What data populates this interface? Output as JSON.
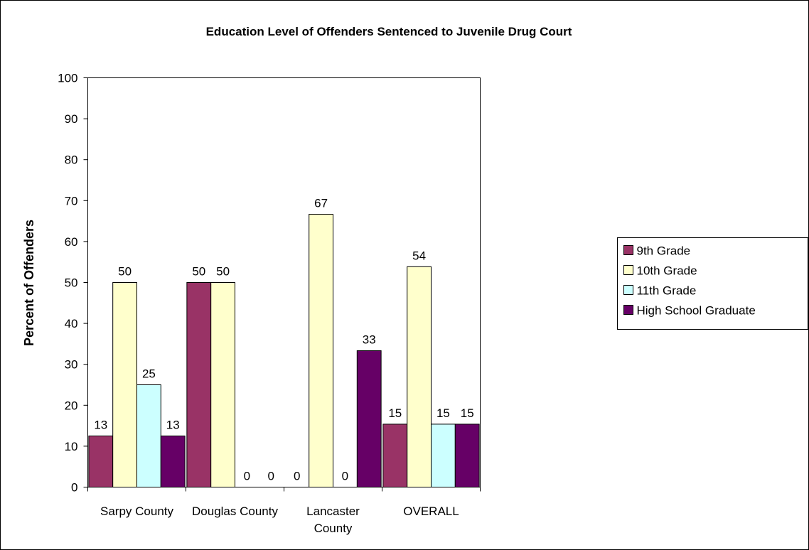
{
  "chart_data": {
    "type": "bar",
    "title": "Education Level of Offenders Sentenced to Juvenile Drug Court",
    "xlabel": "",
    "ylabel": "Percent of Offenders",
    "ylim": [
      0,
      100
    ],
    "yticks": [
      0,
      10,
      20,
      30,
      40,
      50,
      60,
      70,
      80,
      90,
      100
    ],
    "categories": [
      [
        "Sarpy County"
      ],
      [
        "Douglas County"
      ],
      [
        "Lancaster",
        "County"
      ],
      [
        "OVERALL"
      ]
    ],
    "series": [
      {
        "name": "9th Grade",
        "color": "#993366",
        "values": [
          12.5,
          50,
          0,
          15.38
        ],
        "labels": [
          "13",
          "50",
          "0",
          "15"
        ]
      },
      {
        "name": "10th Grade",
        "color": "#FFFFCC",
        "values": [
          50,
          50,
          66.67,
          53.85
        ],
        "labels": [
          "50",
          "50",
          "67",
          "54"
        ]
      },
      {
        "name": "11th Grade",
        "color": "#CCFFFF",
        "values": [
          25,
          0,
          0,
          15.38
        ],
        "labels": [
          "25",
          "0",
          "0",
          "15"
        ]
      },
      {
        "name": "High School Graduate",
        "color": "#660066",
        "values": [
          12.5,
          0,
          33.33,
          15.38
        ],
        "labels": [
          "13",
          "0",
          "33",
          "15"
        ]
      }
    ],
    "grid": false,
    "legend": "right",
    "plot_background": "#FFFFFF"
  }
}
